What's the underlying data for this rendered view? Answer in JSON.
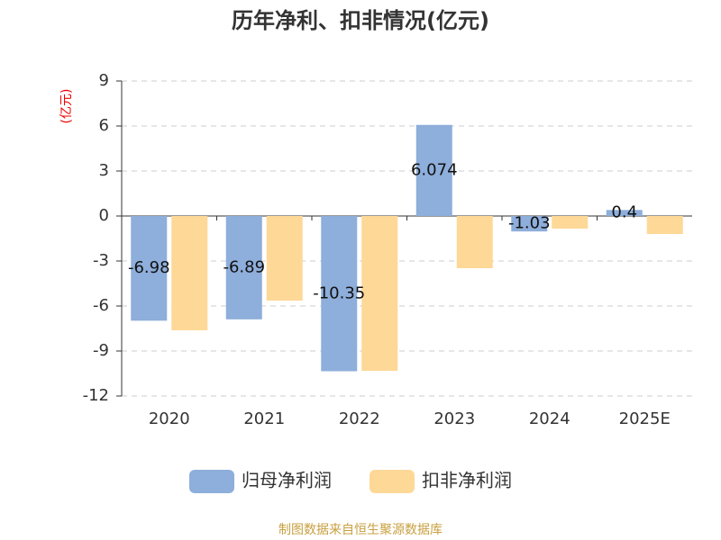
{
  "chart_data": {
    "type": "bar",
    "title": "历年净利、扣非情况(亿元)",
    "y_label": "(亿元)",
    "categories": [
      "2020",
      "2021",
      "2022",
      "2023",
      "2024",
      "2025E"
    ],
    "series": [
      {
        "name": "归母净利润",
        "color": "#8eaedb",
        "values": [
          -6.98,
          -6.89,
          -10.35,
          6.074,
          -1.03,
          0.4
        ],
        "data_labels": true
      },
      {
        "name": "扣非净利润",
        "color": "#fed897",
        "values": [
          -7.62,
          -5.64,
          -10.32,
          -3.48,
          -0.84,
          -1.2
        ]
      }
    ],
    "ylim": [
      -12,
      9
    ],
    "yticks": [
      -12,
      -9,
      -6,
      -3,
      0,
      3,
      6,
      9
    ],
    "grid": true,
    "source": "制图数据来自恒生聚源数据库"
  }
}
